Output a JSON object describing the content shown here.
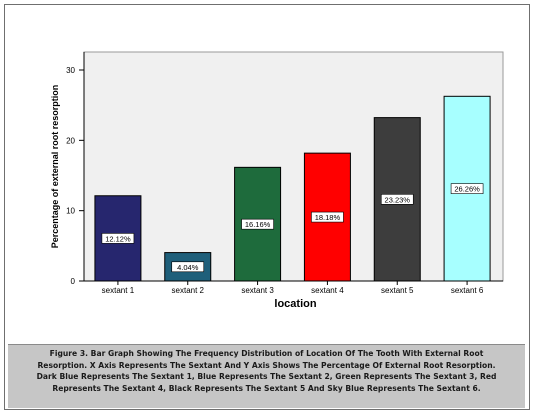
{
  "chart_data": {
    "type": "bar",
    "categories": [
      "sextant 1",
      "sextant 2",
      "sextant 3",
      "sextant 4",
      "sextant 5",
      "sextant 6"
    ],
    "values": [
      12.12,
      4.04,
      16.16,
      18.18,
      23.23,
      26.26
    ],
    "data_labels": [
      "12.12%",
      "4.04%",
      "16.16%",
      "18.18%",
      "23.23%",
      "26.26%"
    ],
    "colors": [
      "#26266e",
      "#1f5f7a",
      "#1e6b3c",
      "#ff0000",
      "#3d3d3d",
      "#a7ffff"
    ],
    "xlabel": "location",
    "ylabel": "Percentage of external root resorption",
    "ylim": [
      0,
      30
    ],
    "yticks": [
      "0",
      "10",
      "20",
      "30"
    ],
    "grid": false,
    "plot_background": "#f0f0f0"
  },
  "caption": {
    "line1": "Figure 3. Bar Graph Showing The Frequency Distribution of Location Of The Tooth With External Root",
    "line2": "Resorption. X Axis Represents The Sextant And Y Axis Shows The Percentage Of External Root Resorption.",
    "line3": "Dark Blue Represents The Sextant 1, Blue Represents The Sextant 2, Green Represents The Sextant 3, Red",
    "line4": "Represents The Sextant 4, Black Represents The Sextant 5 And Sky Blue Represents The Sextant 6."
  }
}
